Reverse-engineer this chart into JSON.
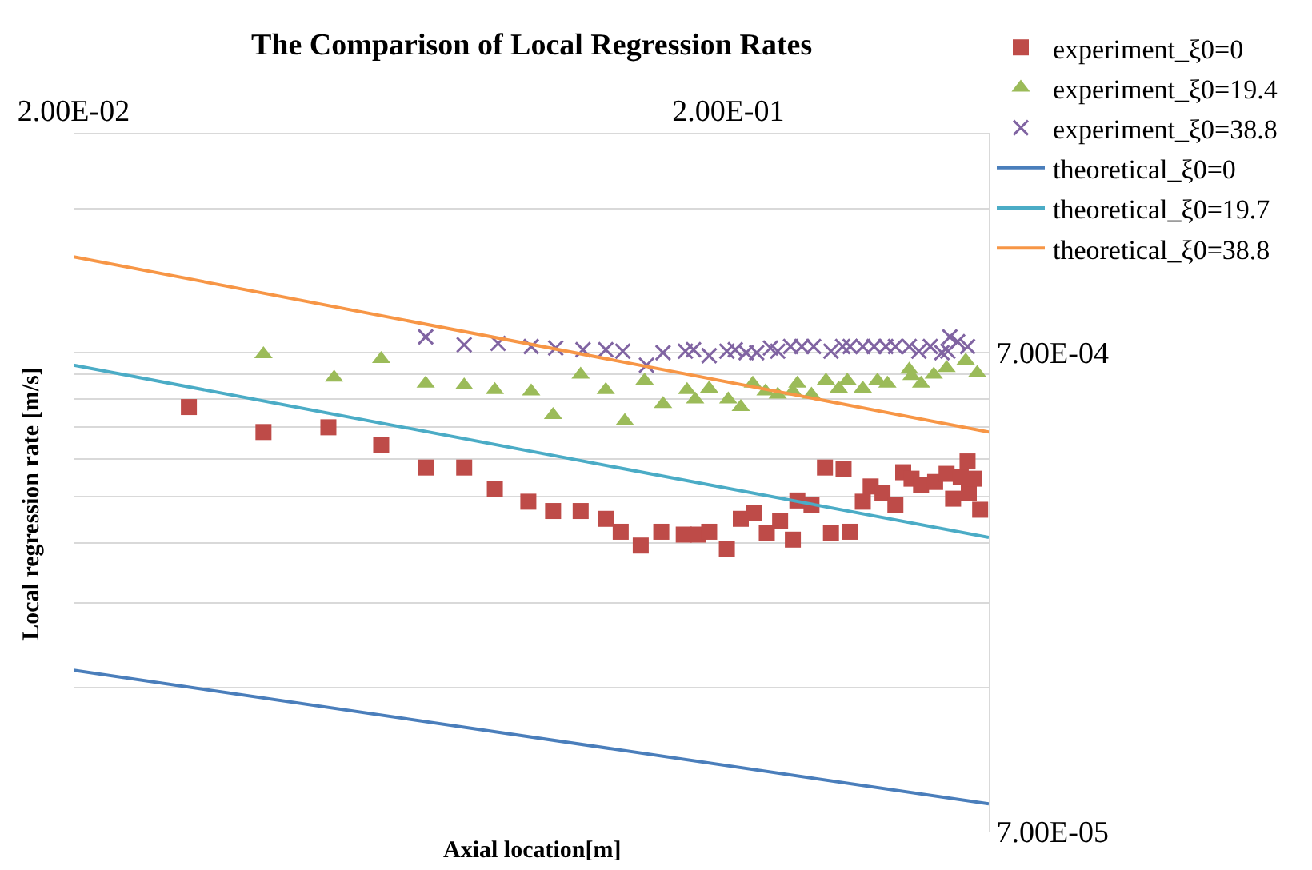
{
  "chart_data": {
    "type": "scatter",
    "title": "The Comparison of Local Regression Rates",
    "xlabel": "Axial location[m]",
    "ylabel": "Local regression rate [m/s]",
    "log": "xy",
    "grid": "y",
    "legend": "right",
    "xlim": [
      0.02,
      0.5
    ],
    "xticks": [
      {
        "value": 0.02,
        "label": "2.00E-02"
      },
      {
        "value": 0.2,
        "label": "2.00E-01"
      }
    ],
    "ylim": [
      7e-05,
      0.002
    ],
    "yticks": [
      {
        "value": 7e-05,
        "label": "7.00E-05"
      },
      {
        "value": 0.00014,
        "label": null
      },
      {
        "value": 0.00021,
        "label": null
      },
      {
        "value": 0.00028,
        "label": null
      },
      {
        "value": 0.00035,
        "label": null
      },
      {
        "value": 0.00042,
        "label": null
      },
      {
        "value": 0.00049,
        "label": null
      },
      {
        "value": 0.00056,
        "label": null
      },
      {
        "value": 0.00063,
        "label": null
      },
      {
        "value": 0.0007,
        "label": "7.00E-04"
      },
      {
        "value": 0.0014,
        "label": null
      }
    ],
    "series": [
      {
        "name": "experiment_ξ0=0",
        "marker": "square",
        "color": "#be4b48",
        "x": [
          0.03,
          0.039,
          0.049,
          0.059,
          0.069,
          0.079,
          0.088,
          0.099,
          0.108,
          0.119,
          0.13,
          0.137,
          0.147,
          0.158,
          0.171,
          0.18,
          0.187,
          0.199,
          0.209,
          0.219,
          0.229,
          0.24,
          0.251,
          0.255,
          0.268,
          0.281,
          0.287,
          0.3,
          0.307,
          0.321,
          0.33,
          0.344,
          0.36,
          0.37,
          0.381,
          0.394,
          0.414,
          0.431,
          0.441,
          0.453,
          0.464,
          0.466,
          0.474,
          0.485
        ],
        "values": [
          0.000539,
          0.000478,
          0.000489,
          0.00045,
          0.000403,
          0.000403,
          0.000363,
          0.000342,
          0.000327,
          0.000327,
          0.000315,
          0.000296,
          0.000277,
          0.000296,
          0.000292,
          0.000292,
          0.000296,
          0.000273,
          0.000315,
          0.000324,
          0.000294,
          0.000312,
          0.000285,
          0.000344,
          0.000336,
          0.000403,
          0.000294,
          0.0004,
          0.000296,
          0.000342,
          0.000368,
          0.000357,
          0.000336,
          0.000394,
          0.000382,
          0.000371,
          0.000376,
          0.000391,
          0.000347,
          0.000385,
          0.000415,
          0.000357,
          0.000382,
          0.000329
        ]
      },
      {
        "name": "experiment_ξ0=19.4",
        "marker": "triangle",
        "color": "#9bbb59",
        "x": [
          0.039,
          0.05,
          0.059,
          0.069,
          0.079,
          0.088,
          0.1,
          0.108,
          0.119,
          0.13,
          0.139,
          0.149,
          0.159,
          0.173,
          0.178,
          0.187,
          0.2,
          0.209,
          0.218,
          0.228,
          0.238,
          0.251,
          0.255,
          0.268,
          0.282,
          0.295,
          0.304,
          0.321,
          0.338,
          0.35,
          0.378,
          0.381,
          0.394,
          0.412,
          0.431,
          0.461,
          0.48
        ],
        "values": [
          0.000695,
          0.000621,
          0.000679,
          0.000603,
          0.000598,
          0.000585,
          0.000581,
          0.000519,
          0.00063,
          0.000585,
          0.000504,
          0.000612,
          0.000547,
          0.000585,
          0.000559,
          0.000589,
          0.000559,
          0.000539,
          0.000603,
          0.000581,
          0.000572,
          0.000581,
          0.000603,
          0.000572,
          0.000612,
          0.000589,
          0.000612,
          0.000589,
          0.000612,
          0.000603,
          0.000645,
          0.000626,
          0.000603,
          0.00063,
          0.00065,
          0.000674,
          0.000635
        ]
      },
      {
        "name": "experiment_ξ0=38.8",
        "marker": "cross",
        "color": "#8064a2",
        "x": [
          0.069,
          0.079,
          0.089,
          0.1,
          0.109,
          0.12,
          0.13,
          0.138,
          0.15,
          0.159,
          0.172,
          0.177,
          0.187,
          0.199,
          0.205,
          0.213,
          0.221,
          0.232,
          0.238,
          0.249,
          0.259,
          0.27,
          0.287,
          0.299,
          0.307,
          0.321,
          0.334,
          0.348,
          0.36,
          0.378,
          0.391,
          0.407,
          0.424,
          0.433,
          0.436,
          0.448,
          0.464
        ],
        "values": [
          0.000755,
          0.000727,
          0.000732,
          0.000721,
          0.000716,
          0.00071,
          0.00071,
          0.000705,
          0.000659,
          0.0007,
          0.000705,
          0.00071,
          0.00069,
          0.000705,
          0.00071,
          0.0007,
          0.0007,
          0.000716,
          0.000705,
          0.000721,
          0.000721,
          0.000721,
          0.000705,
          0.000721,
          0.000721,
          0.000721,
          0.000721,
          0.000721,
          0.000721,
          0.000721,
          0.000705,
          0.000721,
          0.0007,
          0.000705,
          0.000755,
          0.000738,
          0.000721
        ]
      },
      {
        "name": "theoretical_ξ0=0",
        "type": "line",
        "marker": "none",
        "color": "#4a7ebb",
        "x": [
          0.02,
          0.5
        ],
        "values": [
          0.000152,
          8e-05
        ]
      },
      {
        "name": "theoretical_ξ0=19.7",
        "type": "line",
        "marker": "none",
        "color": "#4bacc6",
        "x": [
          0.02,
          0.5
        ],
        "values": [
          0.000659,
          0.000288
        ]
      },
      {
        "name": "theoretical_ξ0=38.8",
        "type": "line",
        "marker": "none",
        "color": "#f79646",
        "x": [
          0.02,
          0.5
        ],
        "values": [
          0.00111,
          0.000478
        ]
      }
    ]
  }
}
